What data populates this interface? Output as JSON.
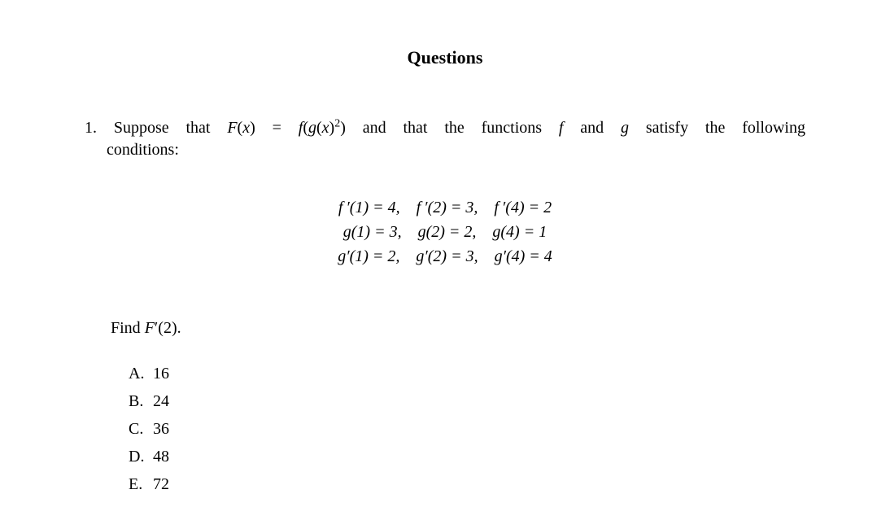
{
  "heading": "Questions",
  "problem": {
    "number": "1.",
    "line1_a": "Suppose",
    "line1_b": "that",
    "line1_c": "F",
    "line1_d": "(",
    "line1_e": "x",
    "line1_f": ")",
    "line1_eq": "=",
    "line1_g": "f",
    "line1_h": "(",
    "line1_i": "g",
    "line1_j": "(",
    "line1_k": "x",
    "line1_l": ")",
    "line1_sup": "2",
    "line1_m": ")",
    "line1_n": "and",
    "line1_o": "that",
    "line1_p": "the",
    "line1_q": "functions",
    "line1_r": "f",
    "line1_s": "and",
    "line1_t": "g",
    "line1_u": "satisfy",
    "line1_v": "the",
    "line1_w": "following",
    "line2": "conditions:"
  },
  "equations": {
    "row1": "f ′(1) = 4, f ′(2) = 3, f ′(4) = 2",
    "row2": "g(1) = 3, g(2) = 2, g(4) = 1",
    "row3": "g′(1) = 2, g′(2) = 3, g′(4) = 4"
  },
  "find": {
    "text_a": "Find ",
    "F": "F",
    "prime": "′",
    "open": "(",
    "arg": "2",
    "close": ")."
  },
  "options": {
    "A": {
      "letter": "A.",
      "value": "16"
    },
    "B": {
      "letter": "B.",
      "value": "24"
    },
    "C": {
      "letter": "C.",
      "value": "36"
    },
    "D": {
      "letter": "D.",
      "value": "48"
    },
    "E": {
      "letter": "E.",
      "value": "72"
    }
  }
}
